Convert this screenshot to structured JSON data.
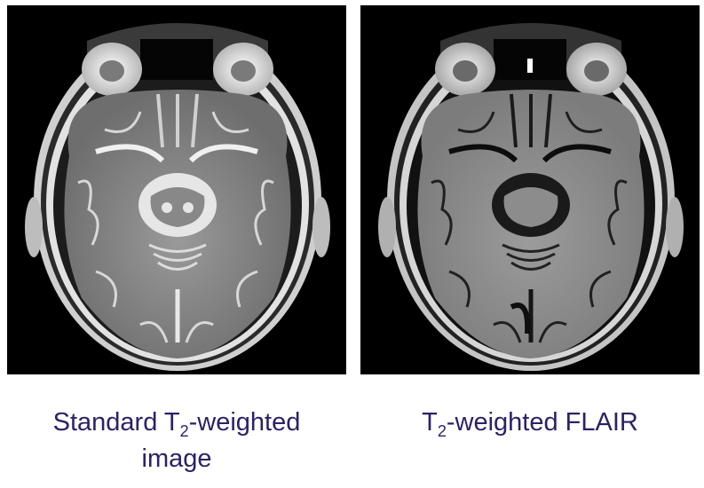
{
  "panels": [
    {
      "caption_prefix": "Standard T",
      "caption_sub": "2",
      "caption_suffix": "-weighted",
      "caption_line2": "image",
      "tone": {
        "bg": "#000000",
        "brain": "#8a8a8a",
        "csf": "#e6e6e6",
        "skull": "#d8d8d8",
        "fat": "#ffffff"
      }
    },
    {
      "caption_prefix": "T",
      "caption_sub": "2",
      "caption_suffix": "-weighted FLAIR",
      "tone": {
        "bg": "#000000",
        "brain": "#8f8f8f",
        "csf": "#1a1a1a",
        "skull": "#c8c8c8",
        "fat": "#f2f2f2"
      }
    }
  ]
}
